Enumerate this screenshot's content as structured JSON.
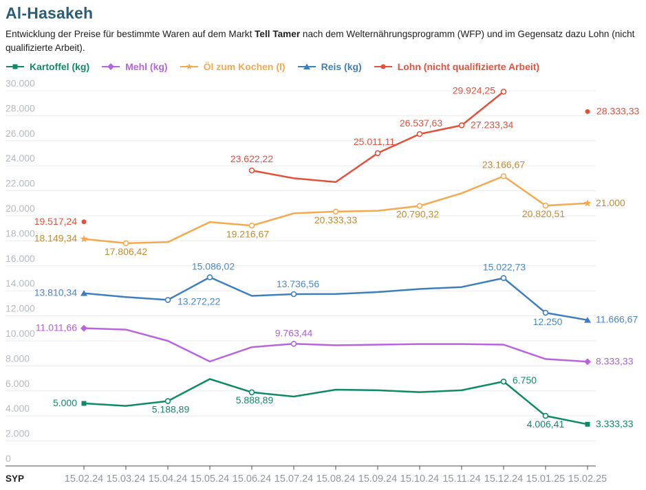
{
  "header": {
    "title": "Al-Hasakeh",
    "description_pre": "Entwicklung der Preise für bestimmte Waren auf dem Markt ",
    "description_bold": "Tell Tamer",
    "description_post": " nach dem Welternährungsprogramm (WFP) und im Gegensatz dazu Lohn (nicht qualifizierte Arbeit)."
  },
  "axis": {
    "unit_label": "SYP",
    "y_ticks": [
      {
        "v": 0,
        "label": "0"
      },
      {
        "v": 2000,
        "label": "2.000"
      },
      {
        "v": 4000,
        "label": "4.000"
      },
      {
        "v": 6000,
        "label": "6.000"
      },
      {
        "v": 8000,
        "label": "8.000"
      },
      {
        "v": 10000,
        "label": "10.000"
      },
      {
        "v": 12000,
        "label": "12.000"
      },
      {
        "v": 14000,
        "label": "14.000"
      },
      {
        "v": 16000,
        "label": "16.000"
      },
      {
        "v": 18000,
        "label": "18.000"
      },
      {
        "v": 20000,
        "label": "20.000"
      },
      {
        "v": 22000,
        "label": "22.000"
      },
      {
        "v": 24000,
        "label": "24.000"
      },
      {
        "v": 26000,
        "label": "26.000"
      },
      {
        "v": 28000,
        "label": "28.000"
      },
      {
        "v": 30000,
        "label": "30.000"
      }
    ]
  },
  "chart_data": {
    "type": "line",
    "title": "Al-Hasakeh",
    "ylabel": "SYP",
    "ylim": [
      0,
      30000
    ],
    "grid": true,
    "legend_position": "top",
    "categories": [
      "15.02.24",
      "15.03.24",
      "15.04.24",
      "15.05.24",
      "15.06.24",
      "15.07.24",
      "15.08.24",
      "15.09.24",
      "15.10.24",
      "15.11.24",
      "15.12.24",
      "15.01.25",
      "15.02.25"
    ],
    "series": [
      {
        "name": "Kartoffel (kg)",
        "color": "#0f8a66",
        "label_color": "#12896b",
        "symbol": "square",
        "values": [
          5000,
          4800,
          5188.89,
          6950,
          5888.89,
          5550,
          6100,
          6050,
          5900,
          6050,
          6750,
          4006.41,
          3333.33
        ],
        "points": [
          {
            "i": 0,
            "label": "5.000",
            "marker": "symbol",
            "anchor": "end",
            "dx": -10,
            "dy": 4
          },
          {
            "i": 2,
            "label": "5.188,89",
            "marker": "open",
            "anchor": "middle",
            "dx": 4,
            "dy": 17
          },
          {
            "i": 4,
            "label": "5.888,89",
            "marker": "open",
            "anchor": "middle",
            "dx": 4,
            "dy": 16
          },
          {
            "i": 10,
            "label": "6.750",
            "marker": "open",
            "anchor": "start",
            "dx": 13,
            "dy": 3
          },
          {
            "i": 11,
            "label": "4.006,41",
            "marker": "open",
            "anchor": "middle",
            "dx": 0,
            "dy": 17
          },
          {
            "i": 12,
            "label": "3.333,33",
            "marker": "symbol",
            "anchor": "start",
            "dx": 12,
            "dy": 4
          }
        ]
      },
      {
        "name": "Mehl (kg)",
        "color": "#b864de",
        "label_color": "#b060d6",
        "symbol": "diamond",
        "values": [
          11011.66,
          10900,
          10000,
          8350,
          9500,
          9763.44,
          9650,
          9700,
          9750,
          9750,
          9700,
          8550,
          8333.33
        ],
        "points": [
          {
            "i": 0,
            "label": "11.011,66",
            "marker": "symbol",
            "anchor": "end",
            "dx": -10,
            "dy": 4
          },
          {
            "i": 5,
            "label": "9.763,44",
            "marker": "open",
            "anchor": "middle",
            "dx": 0,
            "dy": -11
          },
          {
            "i": 12,
            "label": "8.333,33",
            "marker": "symbol",
            "anchor": "start",
            "dx": 12,
            "dy": 4
          }
        ]
      },
      {
        "name": "Öl zum Kochen (l)",
        "color": "#f5a94e",
        "label_color": "#c08c31",
        "symbol": "star",
        "values": [
          18149.34,
          17806.42,
          17900,
          19500,
          19216.67,
          20200,
          20333.33,
          20400,
          20790.32,
          21800,
          23166.67,
          20820.51,
          21000
        ],
        "points": [
          {
            "i": 0,
            "label": "18.149,34",
            "marker": "symbol",
            "anchor": "end",
            "dx": -10,
            "dy": 4
          },
          {
            "i": 1,
            "label": "17.806,42",
            "marker": "open",
            "anchor": "middle",
            "dx": 0,
            "dy": 17
          },
          {
            "i": 4,
            "label": "19.216,67",
            "marker": "open",
            "anchor": "middle",
            "dx": -6,
            "dy": 17
          },
          {
            "i": 6,
            "label": "20.333,33",
            "marker": "open",
            "anchor": "middle",
            "dx": 0,
            "dy": 17
          },
          {
            "i": 8,
            "label": "20.790,32",
            "marker": "open",
            "anchor": "middle",
            "dx": -3,
            "dy": 17
          },
          {
            "i": 10,
            "label": "23.166,67",
            "marker": "open",
            "anchor": "middle",
            "dx": 0,
            "dy": -12
          },
          {
            "i": 11,
            "label": "20.820,51",
            "marker": "open",
            "anchor": "middle",
            "dx": -3,
            "dy": 17
          },
          {
            "i": 12,
            "label": "21.000",
            "marker": "symbol",
            "anchor": "start",
            "dx": 12,
            "dy": 4
          }
        ]
      },
      {
        "name": "Reis (kg)",
        "color": "#3d7ebf",
        "label_color": "#4a87c7",
        "symbol": "triangle",
        "values": [
          13810.34,
          13500,
          13272.22,
          15086.02,
          13600,
          13736.56,
          13750,
          13900,
          14150,
          14300,
          15022.73,
          12250,
          11666.67
        ],
        "points": [
          {
            "i": 0,
            "label": "13.810,34",
            "marker": "symbol",
            "anchor": "end",
            "dx": -10,
            "dy": 4
          },
          {
            "i": 2,
            "label": "13.272,22",
            "marker": "open",
            "anchor": "start",
            "dx": 14,
            "dy": 7
          },
          {
            "i": 3,
            "label": "15.086,02",
            "marker": "open",
            "anchor": "middle",
            "dx": 5,
            "dy": -11
          },
          {
            "i": 5,
            "label": "13.736,56",
            "marker": "open",
            "anchor": "middle",
            "dx": 6,
            "dy": -10
          },
          {
            "i": 10,
            "label": "15.022,73",
            "marker": "open",
            "anchor": "middle",
            "dx": 1,
            "dy": -11
          },
          {
            "i": 11,
            "label": "12.250",
            "marker": "open",
            "anchor": "middle",
            "dx": 3,
            "dy": 18
          },
          {
            "i": 12,
            "label": "11.666,67",
            "marker": "symbol",
            "anchor": "start",
            "dx": 12,
            "dy": 4
          }
        ]
      },
      {
        "name": "Lohn (nicht qualifizierte Arbeit)",
        "color": "#e5503a",
        "label_color": "#e5503a",
        "symbol": "circle",
        "values": [
          19517.24,
          null,
          null,
          null,
          23622.22,
          23000,
          22700,
          25011.11,
          26537.63,
          27233.34,
          29924.25,
          null,
          28333.33
        ],
        "points": [
          {
            "i": 0,
            "label": "19.517,24",
            "marker": "symbol",
            "anchor": "end",
            "dx": -10,
            "dy": 4
          },
          {
            "i": 4,
            "label": "23.622,22",
            "marker": "open",
            "anchor": "middle",
            "dx": 0,
            "dy": -12
          },
          {
            "i": 7,
            "label": "25.011,11",
            "marker": "open",
            "anchor": "middle",
            "dx": -5,
            "dy": -12
          },
          {
            "i": 8,
            "label": "26.537,63",
            "marker": "open",
            "anchor": "middle",
            "dx": 2,
            "dy": -11
          },
          {
            "i": 9,
            "label": "27.233,34",
            "marker": "open",
            "anchor": "start",
            "dx": 13,
            "dy": 4
          },
          {
            "i": 10,
            "label": "29.924,25",
            "marker": "open",
            "anchor": "end",
            "dx": -12,
            "dy": 3
          },
          {
            "i": 12,
            "label": "28.333,33",
            "marker": "symbol",
            "anchor": "start",
            "dx": 13,
            "dy": 4
          }
        ]
      }
    ]
  },
  "colors": {
    "title": "#2a5d77",
    "grid": "#ececec",
    "axis_line": "#4d4d4d",
    "y_tick_label": "#b4bac2",
    "x_tick_label": "#8f969c",
    "text": "#1d1d1d"
  }
}
